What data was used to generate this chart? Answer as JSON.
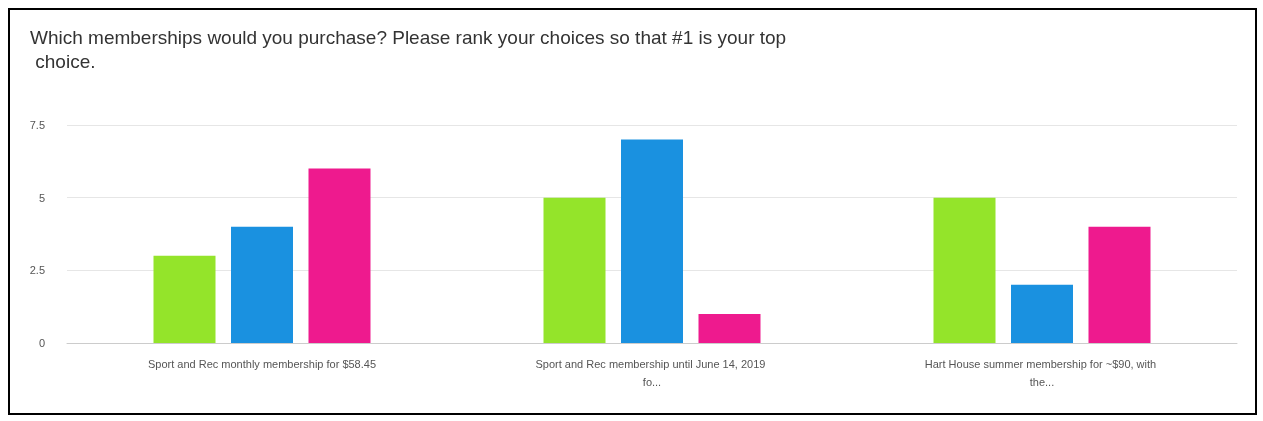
{
  "chart_data": {
    "type": "bar",
    "title": "Which memberships would you purchase? Please rank your choices so that #1 is your top choice.",
    "categories": [
      "Sport and Rec monthly membership for $58.45",
      "Sport and Rec membership until June 14, 2019 fo...",
      "Hart House summer membership for ~$90, with the..."
    ],
    "series": [
      {
        "color": "#94e42a",
        "values": [
          3,
          5,
          5
        ]
      },
      {
        "color": "#1a91e0",
        "values": [
          4,
          7,
          2
        ]
      },
      {
        "color": "#ee1a8e",
        "values": [
          6,
          1,
          4
        ]
      }
    ],
    "ylim": [
      0,
      7.5
    ],
    "yticks": [
      0,
      2.5,
      5,
      7.5
    ],
    "grid": "y"
  }
}
